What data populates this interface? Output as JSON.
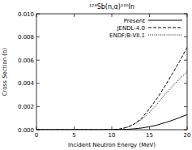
{
  "chart_data": {
    "type": "line",
    "title": "¹²³Sb(n,α)¹²⁰In",
    "x_label": "Incident Neutron Energy (MeV)",
    "y_label": "Cross Section (b)",
    "x": [
      0,
      2,
      4,
      6,
      8,
      10,
      11,
      12,
      13,
      14,
      15,
      16,
      17,
      18,
      19,
      20
    ],
    "series": [
      {
        "name": "Present",
        "color": "#000000",
        "line_style": "solid",
        "values": [
          0,
          0,
          0,
          0,
          0,
          0,
          1e-05,
          3e-05,
          8e-05,
          0.00015,
          0.00026,
          0.0004,
          0.0006,
          0.0008,
          0.00105,
          0.0013
        ]
      },
      {
        "name": "JENDL-4.0",
        "color": "#000000",
        "line_style": "dashed",
        "values": [
          0,
          0,
          0,
          0,
          0,
          0,
          5e-05,
          0.0002,
          0.0005,
          0.001,
          0.0018,
          0.0027,
          0.0037,
          0.0048,
          0.0059,
          0.0071
        ]
      },
      {
        "name": "ENDF/B-VII.1",
        "color": "#000000",
        "line_style": "dotted",
        "values": [
          0,
          0,
          0,
          0,
          0,
          0,
          5e-05,
          0.0002,
          0.0005,
          0.0009,
          0.0015,
          0.0022,
          0.003,
          0.0037,
          0.0044,
          0.005
        ]
      }
    ],
    "xlim": [
      0,
      20
    ],
    "xticks": [
      0,
      5,
      10,
      15,
      20
    ],
    "ylim": [
      0,
      0.01
    ],
    "yticks": [
      {
        "value": 0,
        "label": "0.000"
      },
      {
        "value": 0.002,
        "label": "0.002"
      },
      {
        "value": 0.004,
        "label": "0.004"
      },
      {
        "value": 0.006,
        "label": "0.006"
      },
      {
        "value": 0.008,
        "label": "0.008"
      },
      {
        "value": 0.01,
        "label": "0.010"
      }
    ],
    "legend": "upper right",
    "grid": false
  }
}
